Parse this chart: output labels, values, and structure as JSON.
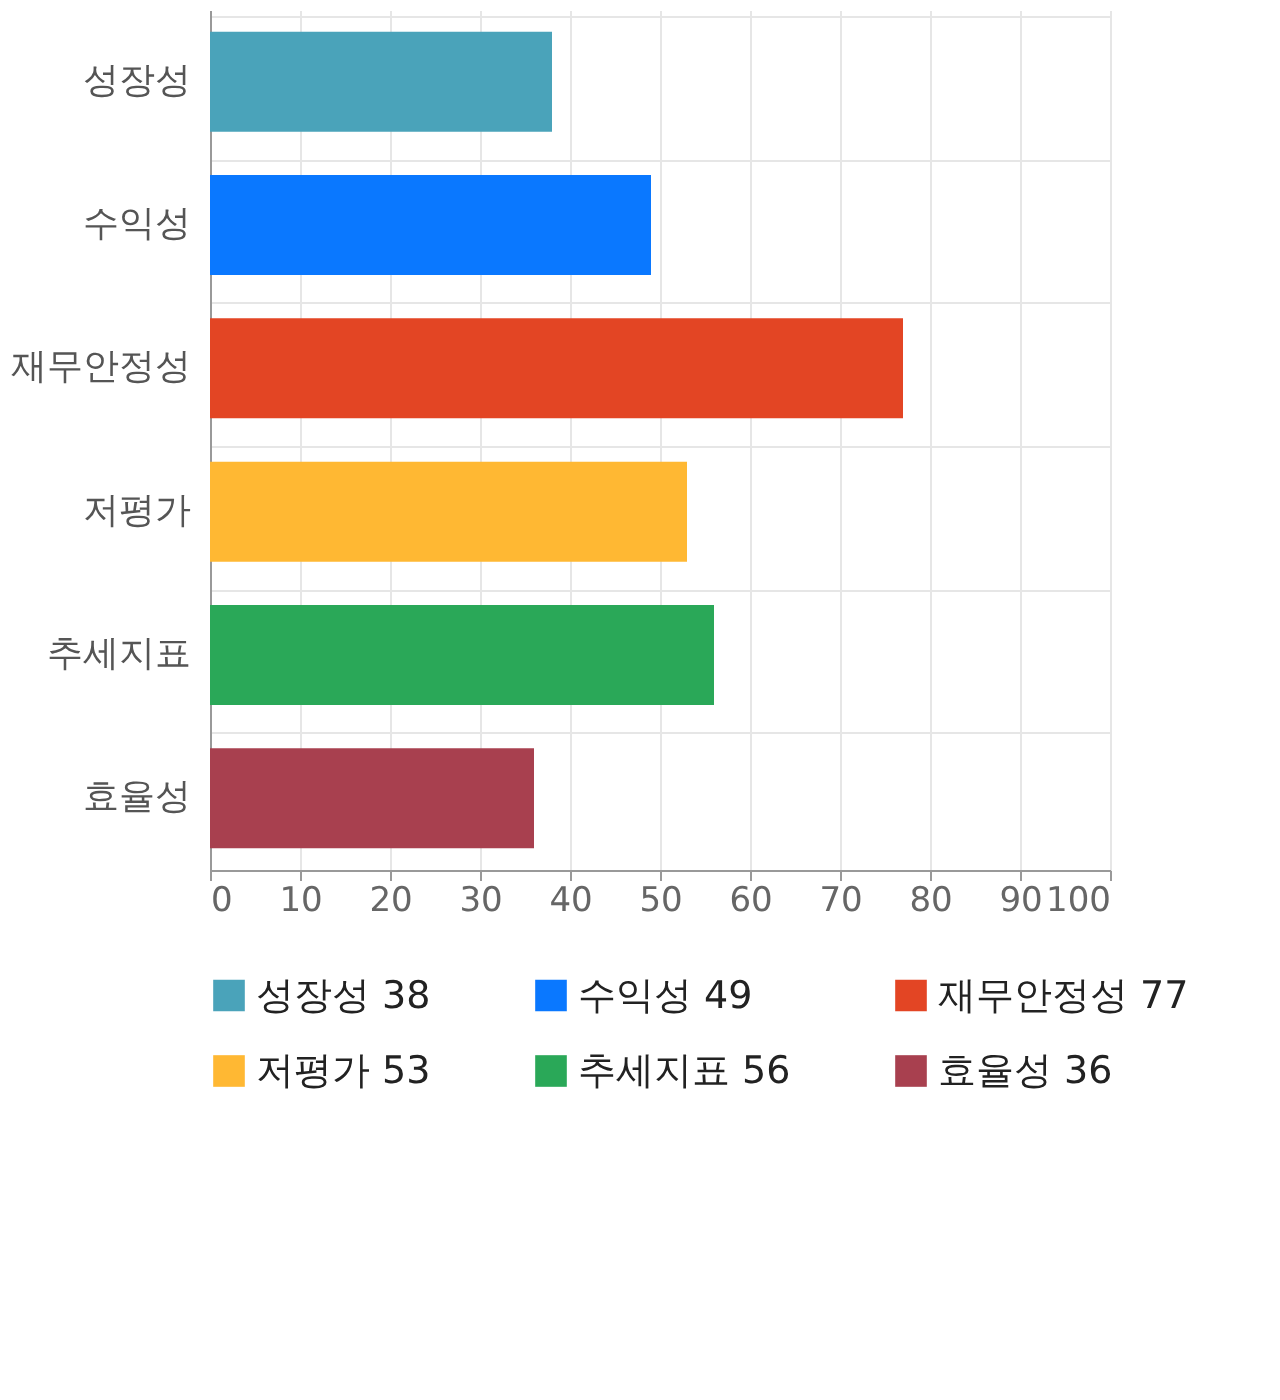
{
  "chart_data": {
    "type": "bar",
    "orientation": "horizontal",
    "categories": [
      "성장성",
      "수익성",
      "재무안정성",
      "저평가",
      "추세지표",
      "효율성"
    ],
    "series": [
      {
        "name": "성장성 38",
        "color": "#4aa3ba",
        "values": [
          38,
          null,
          null,
          null,
          null,
          null
        ]
      },
      {
        "name": "수익성 49",
        "color": "#0a78ff",
        "values": [
          null,
          49,
          null,
          null,
          null,
          null
        ]
      },
      {
        "name": "재무안정성 77",
        "color": "#e34524",
        "values": [
          null,
          null,
          77,
          null,
          null,
          null
        ]
      },
      {
        "name": "저평가 53",
        "color": "#ffb833",
        "values": [
          null,
          null,
          null,
          53,
          null,
          null
        ]
      },
      {
        "name": "추세지표 56",
        "color": "#2aa858",
        "values": [
          null,
          null,
          null,
          null,
          56,
          null
        ]
      },
      {
        "name": "효율성 36",
        "color": "#a8404f",
        "values": [
          null,
          null,
          null,
          null,
          null,
          36
        ]
      }
    ],
    "xlim": [
      0,
      100
    ],
    "xticks": [
      0,
      10,
      20,
      30,
      40,
      50,
      60,
      70,
      80,
      90,
      100
    ],
    "grid": true,
    "legend": "bottom"
  }
}
